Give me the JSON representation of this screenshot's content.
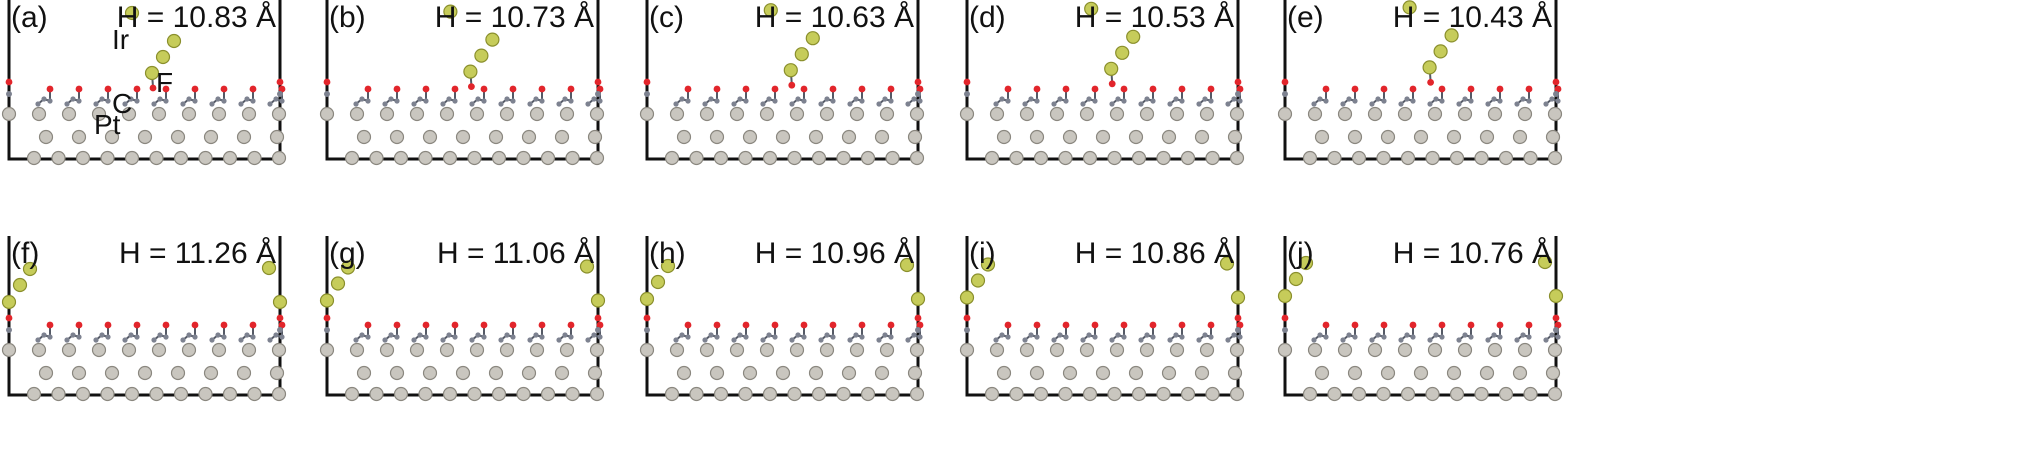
{
  "colors": {
    "frame": "#111111",
    "pt": "#c9c6bf",
    "pt_stroke": "#8a877f",
    "ir": "#c6cc5a",
    "ir_stroke": "#8a8f2c",
    "o": "#e2252b",
    "c": "#7d8290",
    "bond": "#555a66"
  },
  "atom_labels": {
    "ir": "Ir",
    "f": "F",
    "c": "C",
    "pt": "Pt"
  },
  "panels": [
    {
      "id": "a",
      "label": "(a)",
      "h": "H = 10.83 Å",
      "config": "top",
      "shift": 0.0
    },
    {
      "id": "b",
      "label": "(b)",
      "h": "H = 10.73 Å",
      "config": "top",
      "shift": 0.2
    },
    {
      "id": "c",
      "label": "(c)",
      "h": "H = 10.63 Å",
      "config": "top",
      "shift": 0.4
    },
    {
      "id": "d",
      "label": "(d)",
      "h": "H = 10.53 Å",
      "config": "top",
      "shift": 0.6
    },
    {
      "id": "e",
      "label": "(e)",
      "h": "H = 10.43 Å",
      "config": "top",
      "shift": 0.8
    },
    {
      "id": "f",
      "label": "(f)",
      "h": "H = 11.26 Å",
      "config": "edge",
      "shift": 0.0
    },
    {
      "id": "g",
      "label": "(g)",
      "h": "H = 11.06 Å",
      "config": "edge",
      "shift": 0.25
    },
    {
      "id": "h",
      "label": "(h)",
      "h": "H = 10.96 Å",
      "config": "edge",
      "shift": 0.5
    },
    {
      "id": "i",
      "label": "(i)",
      "h": "H = 10.86 Å",
      "config": "edge",
      "shift": 0.75
    },
    {
      "id": "j",
      "label": "(j)",
      "h": "H = 10.76 Å",
      "config": "edge",
      "shift": 1.0
    }
  ]
}
